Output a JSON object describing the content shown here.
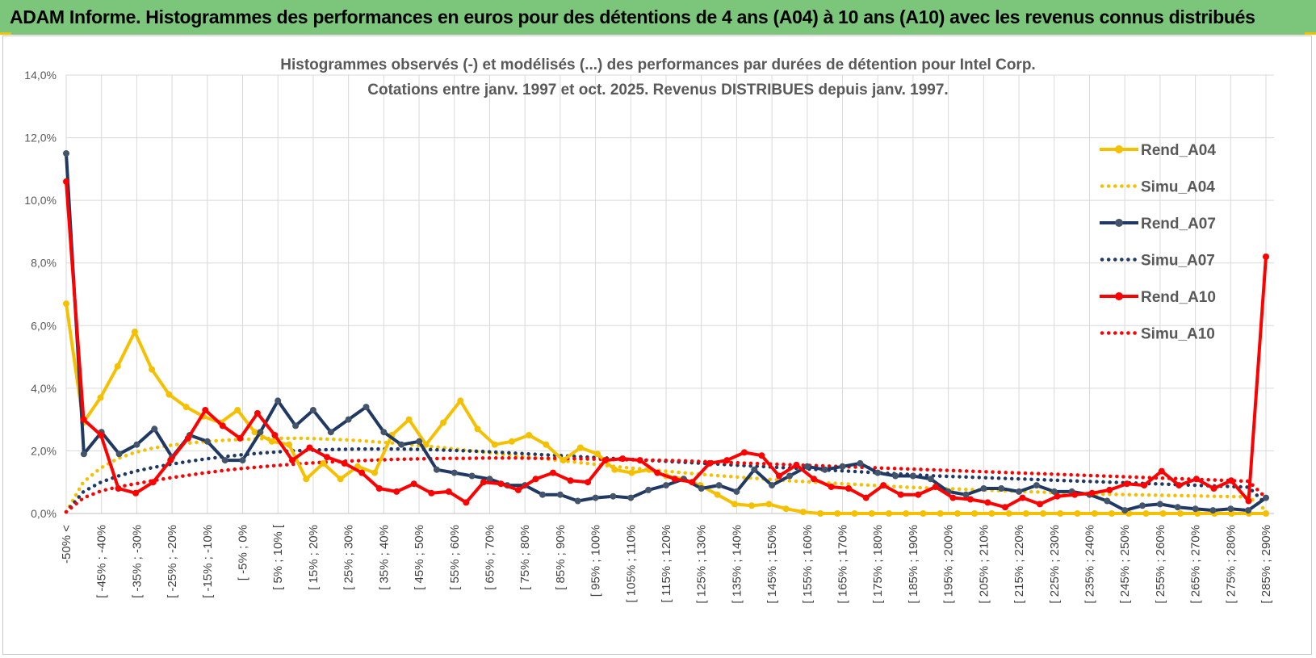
{
  "header": {
    "banner_title": "ADAM Informe. Histogrammes des performances en euros pour des détentions de 4 ans (A04) à 10 ans (A10) avec les revenus connus distribués"
  },
  "chart_data": {
    "type": "line",
    "title_lines": [
      "Histogrammes observés (-) et modélisés (...) des performances par durées de détention pour Intel Corp.",
      "Cotations entre janv. 1997 et oct. 2025.  Revenus DISTRIBUES depuis janv. 1997."
    ],
    "xlabel": "",
    "ylabel": "",
    "ylim": [
      0,
      14
    ],
    "y_ticks": [
      "0,0%",
      "2,0%",
      "4,0%",
      "6,0%",
      "8,0%",
      "10,0%",
      "12,0%",
      "14,0%"
    ],
    "grid": true,
    "legend_position": "right",
    "x_labels": [
      "-50% <",
      "[ -45% ; -40%",
      "[ -35% ; -30%",
      "[ -25% ; -20%",
      "[ -15% ; -10%",
      "[ -5% ; 0%",
      "[ 5% ; 10% [",
      "[ 15% ; 20%",
      "[ 25% ; 30%",
      "[ 35% ; 40%",
      "[ 45% ; 50%",
      "[ 55% ; 60%",
      "[ 65% ; 70%",
      "[ 75% ; 80%",
      "[ 85% ; 90%",
      "[ 95% ; 100%",
      "[ 105% ; 110%",
      "[ 115% ; 120%",
      "[ 125% ; 130%",
      "[ 135% ; 140%",
      "[ 145% ; 150%",
      "[ 155% ; 160%",
      "[ 165% ; 170%",
      "[ 175% ; 180%",
      "[ 185% ; 190%",
      "[ 195% ; 200%",
      "[ 205% ; 210%",
      "[ 215% ; 220%",
      "[ 225% ; 230%",
      "[ 235% ; 240%",
      "[ 245% ; 250%",
      "[ 255% ; 260%",
      "[ 265% ; 270%",
      "[ 275% ; 280%",
      "[ 285% ; 290%"
    ],
    "series": [
      {
        "name": "Rend_A04",
        "color": "#f5c000",
        "style": "solid",
        "values": [
          6.7,
          2.9,
          3.7,
          4.7,
          5.8,
          4.6,
          3.8,
          3.4,
          3.1,
          2.9,
          3.3,
          2.6,
          2.3,
          2.2,
          1.1,
          1.6,
          1.1,
          1.5,
          1.3,
          2.5,
          3.0,
          2.2,
          2.9,
          3.6,
          2.7,
          2.2,
          2.3,
          2.5,
          2.2,
          1.7,
          2.1,
          1.9,
          1.4,
          1.3,
          1.4,
          1.2,
          1.1,
          0.9,
          0.6,
          0.3,
          0.25,
          0.3,
          0.15,
          0.05,
          0,
          0,
          0,
          0,
          0,
          0,
          0,
          0,
          0,
          0,
          0,
          0,
          0,
          0,
          0,
          0,
          0,
          0,
          0,
          0,
          0,
          0,
          0,
          0,
          0,
          0,
          0
        ]
      },
      {
        "name": "Simu_A04",
        "color": "#f5c000",
        "style": "dotted",
        "values": [
          0.05,
          1.0,
          1.45,
          1.75,
          1.95,
          2.08,
          2.17,
          2.24,
          2.29,
          2.33,
          2.36,
          2.38,
          2.4,
          2.4,
          2.4,
          2.38,
          2.36,
          2.33,
          2.29,
          2.25,
          2.2,
          2.15,
          2.1,
          2.04,
          1.98,
          1.92,
          1.86,
          1.8,
          1.74,
          1.68,
          1.62,
          1.56,
          1.5,
          1.45,
          1.4,
          1.35,
          1.3,
          1.25,
          1.21,
          1.17,
          1.13,
          1.09,
          1.05,
          1.02,
          0.99,
          0.96,
          0.93,
          0.9,
          0.87,
          0.84,
          0.82,
          0.8,
          0.78,
          0.76,
          0.74,
          0.72,
          0.7,
          0.68,
          0.66,
          0.64,
          0.62,
          0.61,
          0.6,
          0.59,
          0.58,
          0.57,
          0.56,
          0.55,
          0.54,
          0.53,
          0.1
        ]
      },
      {
        "name": "Rend_A07",
        "color": "#1f3864",
        "style": "solid",
        "values": [
          11.5,
          1.9,
          2.6,
          1.9,
          2.2,
          2.7,
          1.8,
          2.5,
          2.3,
          1.7,
          1.7,
          2.6,
          3.6,
          2.8,
          3.3,
          2.6,
          3.0,
          3.4,
          2.6,
          2.2,
          2.3,
          1.4,
          1.3,
          1.2,
          1.1,
          0.9,
          0.9,
          0.6,
          0.6,
          0.4,
          0.5,
          0.55,
          0.5,
          0.75,
          0.9,
          1.1,
          0.8,
          0.9,
          0.7,
          1.4,
          0.9,
          1.2,
          1.5,
          1.4,
          1.5,
          1.6,
          1.3,
          1.2,
          1.2,
          1.1,
          0.7,
          0.6,
          0.8,
          0.8,
          0.7,
          0.9,
          0.7,
          0.7,
          0.6,
          0.4,
          0.1,
          0.25,
          0.3,
          0.2,
          0.15,
          0.1,
          0.15,
          0.1,
          0.5
        ]
      },
      {
        "name": "Simu_A07",
        "color": "#1f3864",
        "style": "dotted",
        "values": [
          0.05,
          0.7,
          1.0,
          1.2,
          1.35,
          1.47,
          1.57,
          1.66,
          1.74,
          1.81,
          1.87,
          1.92,
          1.96,
          2.0,
          2.02,
          2.04,
          2.05,
          2.06,
          2.06,
          2.06,
          2.05,
          2.04,
          2.02,
          2.0,
          1.98,
          1.95,
          1.92,
          1.89,
          1.86,
          1.83,
          1.8,
          1.77,
          1.74,
          1.71,
          1.68,
          1.65,
          1.62,
          1.59,
          1.56,
          1.53,
          1.5,
          1.47,
          1.44,
          1.41,
          1.38,
          1.35,
          1.32,
          1.29,
          1.26,
          1.23,
          1.2,
          1.18,
          1.16,
          1.14,
          1.12,
          1.1,
          1.08,
          1.06,
          1.04,
          1.02,
          1.0,
          0.98,
          0.96,
          0.94,
          0.92,
          0.9,
          0.88,
          0.86,
          0.84,
          0.3
        ]
      },
      {
        "name": "Rend_A10",
        "color": "#ff0000",
        "style": "solid",
        "values": [
          10.6,
          3.0,
          2.5,
          0.8,
          0.65,
          1.0,
          1.7,
          2.4,
          3.3,
          2.8,
          2.4,
          3.2,
          2.5,
          1.7,
          2.1,
          1.8,
          1.6,
          1.3,
          0.8,
          0.7,
          0.95,
          0.65,
          0.7,
          0.35,
          1.0,
          0.95,
          0.75,
          1.1,
          1.3,
          1.05,
          1.0,
          1.7,
          1.75,
          1.7,
          1.3,
          1.1,
          1.0,
          1.6,
          1.7,
          1.95,
          1.85,
          1.2,
          1.55,
          1.1,
          0.85,
          0.8,
          0.5,
          0.9,
          0.6,
          0.6,
          0.85,
          0.5,
          0.45,
          0.35,
          0.2,
          0.5,
          0.3,
          0.55,
          0.6,
          0.65,
          0.75,
          0.95,
          0.9,
          1.35,
          0.9,
          1.1,
          0.8,
          1.05,
          0.4,
          8.2
        ]
      },
      {
        "name": "Simu_A10",
        "color": "#ff0000",
        "style": "dotted",
        "values": [
          0.05,
          0.5,
          0.72,
          0.85,
          0.95,
          1.05,
          1.14,
          1.22,
          1.3,
          1.37,
          1.43,
          1.48,
          1.53,
          1.57,
          1.61,
          1.64,
          1.67,
          1.69,
          1.71,
          1.73,
          1.74,
          1.75,
          1.76,
          1.76,
          1.77,
          1.77,
          1.77,
          1.76,
          1.76,
          1.75,
          1.74,
          1.73,
          1.72,
          1.71,
          1.7,
          1.69,
          1.67,
          1.65,
          1.63,
          1.61,
          1.59,
          1.57,
          1.55,
          1.53,
          1.51,
          1.49,
          1.47,
          1.45,
          1.43,
          1.41,
          1.39,
          1.37,
          1.35,
          1.33,
          1.31,
          1.29,
          1.27,
          1.25,
          1.23,
          1.21,
          1.19,
          1.17,
          1.15,
          1.13,
          1.11,
          1.09,
          1.07,
          1.05,
          1.03,
          0.5
        ]
      }
    ]
  }
}
